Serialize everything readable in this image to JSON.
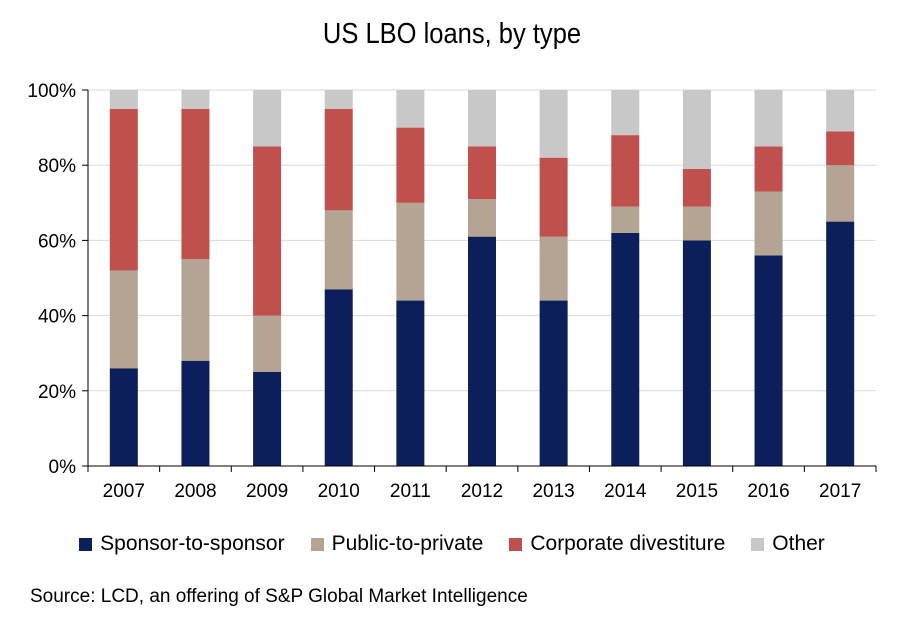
{
  "chart_data": {
    "type": "bar",
    "stacked": true,
    "title": "US LBO loans, by type",
    "categories": [
      "2007",
      "2008",
      "2009",
      "2010",
      "2011",
      "2012",
      "2013",
      "2014",
      "2015",
      "2016",
      "2017"
    ],
    "series": [
      {
        "name": "Sponsor-to-sponsor",
        "color": "#0c1f5a",
        "values": [
          26,
          28,
          25,
          47,
          44,
          61,
          44,
          62,
          60,
          56,
          65
        ]
      },
      {
        "name": "Public-to-private",
        "color": "#b3a494",
        "values": [
          26,
          27,
          15,
          21,
          26,
          10,
          17,
          7,
          9,
          17,
          15
        ]
      },
      {
        "name": "Corporate divestiture",
        "color": "#c0504d",
        "values": [
          43,
          40,
          45,
          27,
          20,
          14,
          21,
          19,
          10,
          12,
          9
        ]
      },
      {
        "name": "Other",
        "color": "#c8c8c8",
        "values": [
          5,
          5,
          15,
          5,
          10,
          15,
          18,
          12,
          21,
          15,
          11
        ]
      }
    ],
    "ylim": [
      0,
      100
    ],
    "yticks": [
      "0%",
      "20%",
      "40%",
      "60%",
      "80%",
      "100%"
    ],
    "ytick_values": [
      0,
      20,
      40,
      60,
      80,
      100
    ],
    "grid": true,
    "legend_position": "bottom",
    "xlabel": "",
    "ylabel": ""
  },
  "source": "Source: LCD, an offering of S&P Global Market Intelligence"
}
